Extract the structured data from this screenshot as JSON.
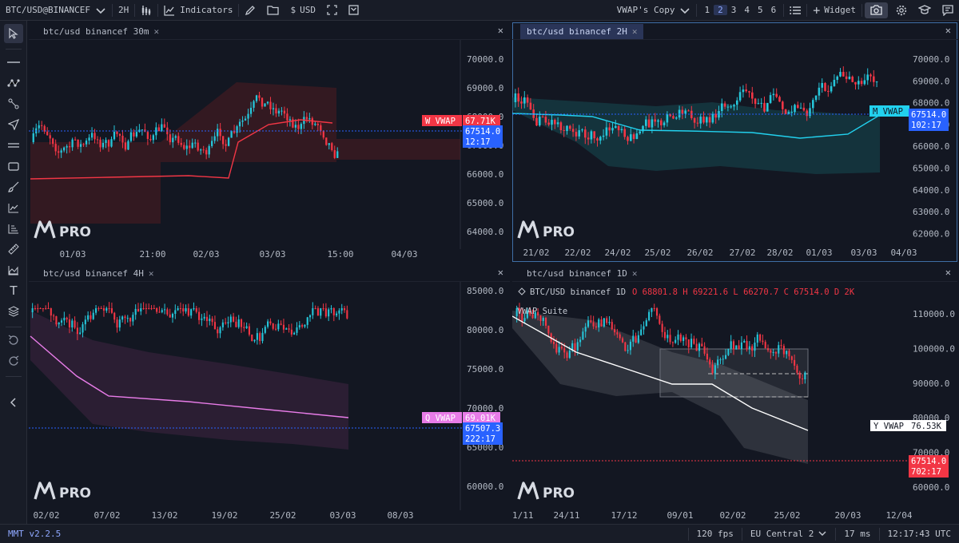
{
  "toolbar": {
    "symbol": "BTC/USD@BINANCEF",
    "interval": "2H",
    "indicators": "Indicators",
    "currency": "USD",
    "layout_name": "VWAP's Copy",
    "layouts": [
      "1",
      "2",
      "3",
      "4",
      "5",
      "6"
    ],
    "active_layout": "2",
    "widget": "Widget"
  },
  "sidebar": {
    "tools": [
      "cursor-icon",
      "horizontal-line-icon",
      "nodes-icon",
      "path-icon",
      "arrow-icon",
      "parallel-lines-icon",
      "rectangle-icon",
      "brush-icon",
      "line-chart-icon",
      "bars-icon",
      "ruler-icon",
      "area-chart-icon",
      "text-icon",
      "layers-icon",
      "undo-icon",
      "redo-icon",
      "collapse-icon"
    ]
  },
  "panels": [
    {
      "tab": "btc/usd binancef 30m",
      "watermark": "PRO",
      "price_labels": [
        "70000.0",
        "69000.0",
        "68000.0",
        "67000.0",
        "66000.0",
        "65000.0",
        "64000.0"
      ],
      "time_labels": [
        "01/03",
        "21:00",
        "02/03",
        "03/03",
        "15:00",
        "04/03"
      ],
      "vwap_tag": "W VWAP",
      "vwap_value": "67.71K",
      "last_price": "67514.0",
      "countdown": "12:17",
      "colors": {
        "vwap": "#f23645",
        "band": "#5a1c22"
      }
    },
    {
      "tab": "btc/usd binancef 2H",
      "watermark": "PRO",
      "price_labels": [
        "70000.0",
        "69000.0",
        "68000.0",
        "67000.0",
        "66000.0",
        "65000.0",
        "64000.0",
        "63000.0",
        "62000.0"
      ],
      "time_labels": [
        "21/02",
        "22/02",
        "24/02",
        "25/02",
        "26/02",
        "27/02",
        "28/02",
        "01/03",
        "03/03",
        "04/03"
      ],
      "vwap_tag": "M VWAP",
      "last_price": "67514.0",
      "countdown": "102:17",
      "colors": {
        "vwap": "#22d1ee",
        "band": "#164a52"
      }
    },
    {
      "tab": "btc/usd binancef 4H",
      "watermark": "PRO",
      "price_labels": [
        "85000.0",
        "80000.0",
        "75000.0",
        "70000.0",
        "65000.0",
        "60000.0"
      ],
      "time_labels": [
        "02/02",
        "07/02",
        "13/02",
        "19/02",
        "25/02",
        "03/03",
        "08/03"
      ],
      "vwap_tag": "Q VWAP",
      "vwap_value": "69.01K",
      "last_price": "67507.3",
      "countdown": "222:17",
      "colors": {
        "vwap": "#e87ce8",
        "band": "#3f2442"
      }
    },
    {
      "tab": "btc/usd binancef 1D",
      "watermark": "PRO",
      "legend_symbol": "BTC/USD binancef 1D",
      "ohlc": "O 68801.8  H 69221.6  L 66270.7  C 67514.0  D 2K",
      "indicator_name": "VWAP Suite",
      "price_labels": [
        "110000.0",
        "100000.0",
        "90000.0",
        "80000.0",
        "70000.0",
        "60000.0"
      ],
      "time_labels": [
        "1/11",
        "24/11",
        "17/12",
        "09/01",
        "02/02",
        "25/02",
        "20/03",
        "12/04"
      ],
      "vwap_tag": "Y VWAP",
      "vwap_value": "76.53K",
      "last_price": "67514.0",
      "countdown": "702:17",
      "colors": {
        "vwap": "#ffffff",
        "band": "#4a4d56"
      }
    }
  ],
  "statusbar": {
    "version": "MMT v2.2.5",
    "fps": "120 fps",
    "region": "EU Central 2",
    "latency": "17 ms",
    "clock": "12:17:43 UTC"
  },
  "theme": {
    "up": "#26c6da",
    "down": "#f23645",
    "price_label": "#2962ff"
  }
}
